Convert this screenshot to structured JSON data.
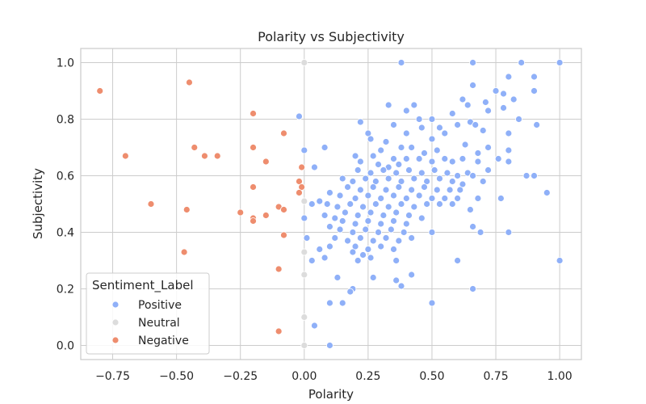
{
  "chart_data": {
    "type": "scatter",
    "title": "Polarity vs Subjectivity",
    "xlabel": "Polarity",
    "ylabel": "Subjectivity",
    "xlim": [
      -0.875,
      1.085
    ],
    "ylim": [
      -0.05,
      1.05
    ],
    "x_ticks": [
      -0.75,
      -0.5,
      -0.25,
      0.0,
      0.25,
      0.5,
      0.75,
      1.0
    ],
    "x_tick_labels": [
      "−0.75",
      "−0.50",
      "−0.25",
      "0.00",
      "0.25",
      "0.50",
      "0.75",
      "1.00"
    ],
    "y_ticks": [
      0.0,
      0.2,
      0.4,
      0.6,
      0.8,
      1.0
    ],
    "y_tick_labels": [
      "0.0",
      "0.2",
      "0.4",
      "0.6",
      "0.8",
      "1.0"
    ],
    "grid": true,
    "legend_title": "Sentiment_Label",
    "legend_position": "lower-left",
    "series": [
      {
        "name": "Positive",
        "color": "#8fb0f8",
        "points": [
          [
            0.38,
            1.0
          ],
          [
            0.66,
            1.0
          ],
          [
            0.85,
            1.0
          ],
          [
            1.0,
            1.0
          ],
          [
            0.9,
            0.95
          ],
          [
            0.8,
            0.95
          ],
          [
            0.66,
            0.92
          ],
          [
            0.75,
            0.9
          ],
          [
            0.78,
            0.89
          ],
          [
            0.9,
            0.9
          ],
          [
            0.62,
            0.87
          ],
          [
            0.82,
            0.87
          ],
          [
            0.71,
            0.86
          ],
          [
            0.64,
            0.85
          ],
          [
            0.78,
            0.84
          ],
          [
            0.33,
            0.85
          ],
          [
            0.43,
            0.85
          ],
          [
            0.72,
            0.83
          ],
          [
            0.4,
            0.83
          ],
          [
            0.58,
            0.82
          ],
          [
            0.45,
            0.8
          ],
          [
            0.5,
            0.8
          ],
          [
            0.65,
            0.79
          ],
          [
            0.84,
            0.8
          ],
          [
            0.91,
            0.78
          ],
          [
            0.22,
            0.79
          ],
          [
            0.35,
            0.78
          ],
          [
            0.6,
            0.78
          ],
          [
            0.67,
            0.78
          ],
          [
            0.53,
            0.77
          ],
          [
            0.46,
            0.77
          ],
          [
            0.25,
            0.75
          ],
          [
            0.4,
            0.75
          ],
          [
            0.55,
            0.75
          ],
          [
            0.7,
            0.76
          ],
          [
            0.8,
            0.75
          ],
          [
            0.26,
            0.73
          ],
          [
            0.32,
            0.72
          ],
          [
            0.5,
            0.73
          ],
          [
            0.63,
            0.71
          ],
          [
            0.72,
            0.7
          ],
          [
            0.38,
            0.7
          ],
          [
            0.42,
            0.7
          ],
          [
            0.3,
            0.69
          ],
          [
            0.52,
            0.69
          ],
          [
            0.47,
            0.68
          ],
          [
            0.8,
            0.69
          ],
          [
            0.68,
            0.68
          ],
          [
            0.2,
            0.67
          ],
          [
            0.27,
            0.67
          ],
          [
            0.35,
            0.66
          ],
          [
            0.4,
            0.66
          ],
          [
            0.45,
            0.66
          ],
          [
            0.55,
            0.66
          ],
          [
            0.62,
            0.66
          ],
          [
            0.76,
            0.66
          ],
          [
            0.22,
            0.65
          ],
          [
            0.29,
            0.64
          ],
          [
            0.33,
            0.63
          ],
          [
            0.37,
            0.64
          ],
          [
            0.5,
            0.65
          ],
          [
            0.58,
            0.65
          ],
          [
            0.68,
            0.65
          ],
          [
            0.8,
            0.65
          ],
          [
            0.21,
            0.62
          ],
          [
            0.26,
            0.61
          ],
          [
            0.31,
            0.62
          ],
          [
            0.36,
            0.61
          ],
          [
            0.41,
            0.62
          ],
          [
            0.46,
            0.61
          ],
          [
            0.51,
            0.62
          ],
          [
            0.56,
            0.61
          ],
          [
            0.64,
            0.61
          ],
          [
            0.72,
            0.62
          ],
          [
            0.87,
            0.6
          ],
          [
            0.9,
            0.6
          ],
          [
            0.6,
            0.6
          ],
          [
            0.66,
            0.6
          ],
          [
            0.15,
            0.59
          ],
          [
            0.19,
            0.58
          ],
          [
            0.24,
            0.59
          ],
          [
            0.28,
            0.58
          ],
          [
            0.33,
            0.59
          ],
          [
            0.38,
            0.58
          ],
          [
            0.43,
            0.59
          ],
          [
            0.48,
            0.58
          ],
          [
            0.53,
            0.59
          ],
          [
            0.58,
            0.58
          ],
          [
            0.62,
            0.57
          ],
          [
            0.7,
            0.58
          ],
          [
            0.17,
            0.56
          ],
          [
            0.22,
            0.55
          ],
          [
            0.27,
            0.56
          ],
          [
            0.32,
            0.55
          ],
          [
            0.37,
            0.56
          ],
          [
            0.42,
            0.55
          ],
          [
            0.47,
            0.56
          ],
          [
            0.52,
            0.55
          ],
          [
            0.57,
            0.55
          ],
          [
            0.61,
            0.55
          ],
          [
            0.95,
            0.54
          ],
          [
            0.1,
            0.54
          ],
          [
            0.14,
            0.53
          ],
          [
            0.2,
            0.52
          ],
          [
            0.25,
            0.53
          ],
          [
            0.3,
            0.52
          ],
          [
            0.35,
            0.53
          ],
          [
            0.4,
            0.52
          ],
          [
            0.45,
            0.53
          ],
          [
            0.5,
            0.52
          ],
          [
            0.55,
            0.52
          ],
          [
            0.6,
            0.52
          ],
          [
            0.68,
            0.52
          ],
          [
            0.77,
            0.52
          ],
          [
            0.06,
            0.51
          ],
          [
            0.09,
            0.5
          ],
          [
            0.13,
            0.49
          ],
          [
            0.18,
            0.5
          ],
          [
            0.23,
            0.49
          ],
          [
            0.28,
            0.5
          ],
          [
            0.33,
            0.49
          ],
          [
            0.38,
            0.5
          ],
          [
            0.43,
            0.49
          ],
          [
            0.48,
            0.5
          ],
          [
            0.53,
            0.5
          ],
          [
            0.58,
            0.5
          ],
          [
            0.65,
            0.48
          ],
          [
            0.16,
            0.47
          ],
          [
            0.21,
            0.46
          ],
          [
            0.26,
            0.47
          ],
          [
            0.31,
            0.46
          ],
          [
            0.36,
            0.47
          ],
          [
            0.41,
            0.46
          ],
          [
            0.46,
            0.45
          ],
          [
            0.08,
            0.46
          ],
          [
            0.12,
            0.45
          ],
          [
            0.15,
            0.44
          ],
          [
            0.2,
            0.43
          ],
          [
            0.25,
            0.44
          ],
          [
            0.3,
            0.43
          ],
          [
            0.35,
            0.44
          ],
          [
            0.4,
            0.43
          ],
          [
            0.1,
            0.42
          ],
          [
            0.14,
            0.41
          ],
          [
            0.19,
            0.4
          ],
          [
            0.24,
            0.41
          ],
          [
            0.29,
            0.4
          ],
          [
            0.34,
            0.41
          ],
          [
            0.39,
            0.4
          ],
          [
            0.5,
            0.4
          ],
          [
            0.66,
            0.42
          ],
          [
            0.69,
            0.4
          ],
          [
            0.8,
            0.4
          ],
          [
            0.12,
            0.38
          ],
          [
            0.17,
            0.37
          ],
          [
            0.22,
            0.38
          ],
          [
            0.27,
            0.37
          ],
          [
            0.32,
            0.38
          ],
          [
            0.37,
            0.37
          ],
          [
            0.42,
            0.38
          ],
          [
            0.2,
            0.35
          ],
          [
            0.25,
            0.34
          ],
          [
            0.3,
            0.35
          ],
          [
            0.35,
            0.34
          ],
          [
            0.06,
            0.34
          ],
          [
            0.1,
            0.35
          ],
          [
            0.08,
            0.31
          ],
          [
            0.19,
            0.33
          ],
          [
            0.23,
            0.32
          ],
          [
            0.21,
            0.3
          ],
          [
            0.26,
            0.31
          ],
          [
            0.36,
            0.3
          ],
          [
            0.6,
            0.3
          ],
          [
            1.0,
            0.3
          ],
          [
            0.03,
            0.3
          ],
          [
            0.13,
            0.24
          ],
          [
            0.27,
            0.24
          ],
          [
            0.42,
            0.25
          ],
          [
            0.36,
            0.23
          ],
          [
            0.38,
            0.21
          ],
          [
            0.66,
            0.2
          ],
          [
            0.19,
            0.2
          ],
          [
            0.18,
            0.19
          ],
          [
            0.1,
            0.15
          ],
          [
            0.15,
            0.15
          ],
          [
            0.5,
            0.15
          ],
          [
            0.04,
            0.07
          ],
          [
            0.1,
            0.0
          ],
          [
            -0.02,
            0.81
          ],
          [
            0.08,
            0.7
          ],
          [
            0.0,
            0.69
          ],
          [
            0.04,
            0.63
          ],
          [
            0.0,
            0.51
          ],
          [
            0.03,
            0.5
          ],
          [
            0.0,
            0.45
          ],
          [
            0.01,
            0.38
          ]
        ]
      },
      {
        "name": "Neutral",
        "color": "#dcdcdc",
        "points": [
          [
            0.0,
            1.0
          ],
          [
            0.0,
            0.51
          ],
          [
            0.0,
            0.33
          ],
          [
            0.0,
            0.25
          ],
          [
            0.0,
            0.1
          ],
          [
            0.0,
            0.0
          ]
        ]
      },
      {
        "name": "Negative",
        "color": "#ee8d6e",
        "points": [
          [
            -0.8,
            0.9
          ],
          [
            -0.45,
            0.93
          ],
          [
            -0.2,
            0.82
          ],
          [
            -0.08,
            0.75
          ],
          [
            -0.43,
            0.7
          ],
          [
            -0.2,
            0.7
          ],
          [
            -0.7,
            0.67
          ],
          [
            -0.39,
            0.67
          ],
          [
            -0.34,
            0.67
          ],
          [
            -0.15,
            0.65
          ],
          [
            -0.01,
            0.63
          ],
          [
            -0.02,
            0.58
          ],
          [
            -0.2,
            0.56
          ],
          [
            -0.01,
            0.56
          ],
          [
            -0.02,
            0.54
          ],
          [
            -0.6,
            0.5
          ],
          [
            -0.46,
            0.48
          ],
          [
            -0.25,
            0.47
          ],
          [
            -0.1,
            0.49
          ],
          [
            -0.08,
            0.48
          ],
          [
            -0.15,
            0.46
          ],
          [
            -0.2,
            0.45
          ],
          [
            -0.2,
            0.44
          ],
          [
            -0.08,
            0.39
          ],
          [
            -0.47,
            0.33
          ],
          [
            -0.1,
            0.27
          ],
          [
            -0.1,
            0.05
          ]
        ]
      }
    ]
  }
}
